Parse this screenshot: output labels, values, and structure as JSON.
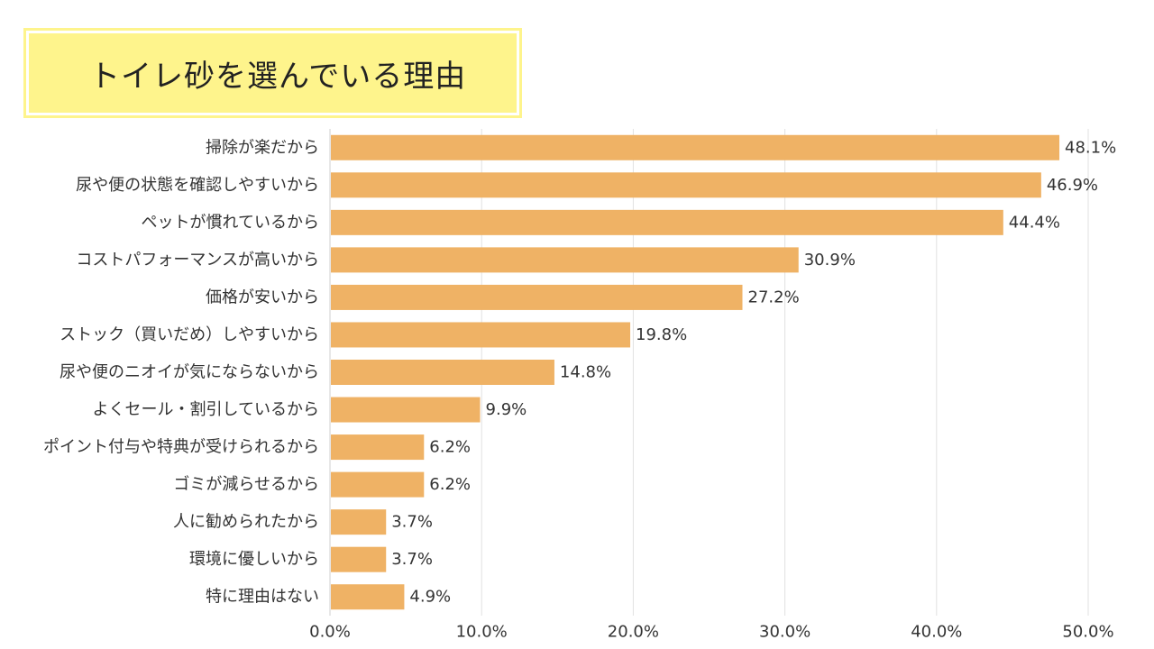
{
  "chart_data": {
    "type": "bar",
    "orientation": "horizontal",
    "title": "トイレ砂を選んでいる理由",
    "xlabel": "",
    "ylabel": "",
    "xlim": [
      0,
      50
    ],
    "ticks": [
      "0.0%",
      "10.0%",
      "20.0%",
      "30.0%",
      "40.0%",
      "50.0%"
    ],
    "grid": true,
    "categories": [
      "掃除が楽だから",
      "尿や便の状態を確認しやすいから",
      "ペットが慣れているから",
      "コストパフォーマンスが高いから",
      "価格が安いから",
      "ストック（買いだめ）しやすいから",
      "尿や便のニオイが気にならないから",
      "よくセール・割引しているから",
      "ポイント付与や特典が受けられるから",
      "ゴミが減らせるから",
      "人に勧められたから",
      "環境に優しいから",
      "特に理由はない"
    ],
    "values": [
      48.1,
      46.9,
      44.4,
      30.9,
      27.2,
      19.8,
      14.8,
      9.9,
      6.2,
      6.2,
      3.7,
      3.7,
      4.9
    ],
    "value_labels": [
      "48.1%",
      "46.9%",
      "44.4%",
      "30.9%",
      "27.2%",
      "19.8%",
      "14.8%",
      "9.9%",
      "6.2%",
      "6.2%",
      "3.7%",
      "3.7%",
      "4.9%"
    ],
    "bar_color": "#efb265",
    "grid_color": "#e2e2e2",
    "title_bg_color": "#fef48c"
  }
}
